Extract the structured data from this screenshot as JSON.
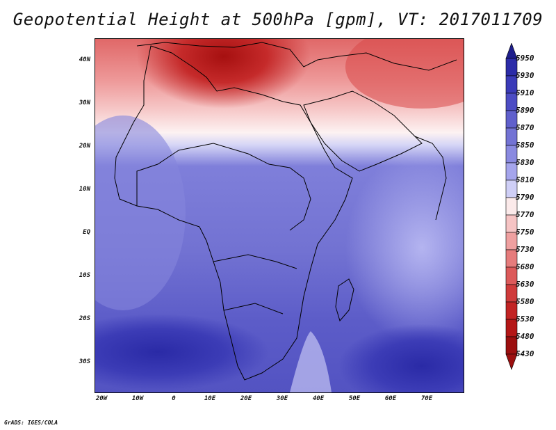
{
  "title": "Geopotential Height at 500hPa [gpm], VT: 2017011709",
  "footer": "GrADS: IGES/COLA",
  "latitude_labels": [
    "40N",
    "30N",
    "20N",
    "10N",
    "EQ",
    "10S",
    "20S",
    "30S"
  ],
  "longitude_labels": [
    "20W",
    "10W",
    "0",
    "10E",
    "20E",
    "30E",
    "40E",
    "50E",
    "60E",
    "70E"
  ],
  "colorbar": {
    "levels": [
      "5950",
      "5930",
      "5910",
      "5890",
      "5870",
      "5850",
      "5830",
      "5810",
      "5790",
      "5770",
      "5750",
      "5730",
      "5680",
      "5630",
      "5580",
      "5530",
      "5480",
      "5430"
    ],
    "colors": [
      "#1e1e8c",
      "#2c2ca8",
      "#3b3bb8",
      "#4d4dc4",
      "#6060cc",
      "#7373d4",
      "#8a8ae0",
      "#a5a5ec",
      "#cfcff6",
      "#fbeaea",
      "#f6c4c4",
      "#efa0a0",
      "#e67c7c",
      "#dc5a5a",
      "#cf3b3b",
      "#c22424",
      "#b41717",
      "#9c0f0f"
    ]
  },
  "chart_data": {
    "type": "heatmap",
    "title": "Geopotential Height at 500hPa [gpm], VT: 2017011709",
    "variable": "Geopotential Height at 500hPa",
    "units": "gpm",
    "valid_time": "2017011709",
    "lon_range": [
      -22,
      80
    ],
    "lat_range": [
      -37,
      45
    ],
    "x_ticks": [
      "20W",
      "10W",
      "0",
      "10E",
      "20E",
      "30E",
      "40E",
      "50E",
      "60E",
      "70E"
    ],
    "y_ticks": [
      "40N",
      "30N",
      "20N",
      "10N",
      "EQ",
      "10S",
      "20S",
      "30S"
    ],
    "colorbar_levels": [
      5430,
      5480,
      5530,
      5580,
      5630,
      5680,
      5730,
      5750,
      5770,
      5790,
      5810,
      5830,
      5850,
      5870,
      5890,
      5910,
      5930,
      5950
    ]
  }
}
